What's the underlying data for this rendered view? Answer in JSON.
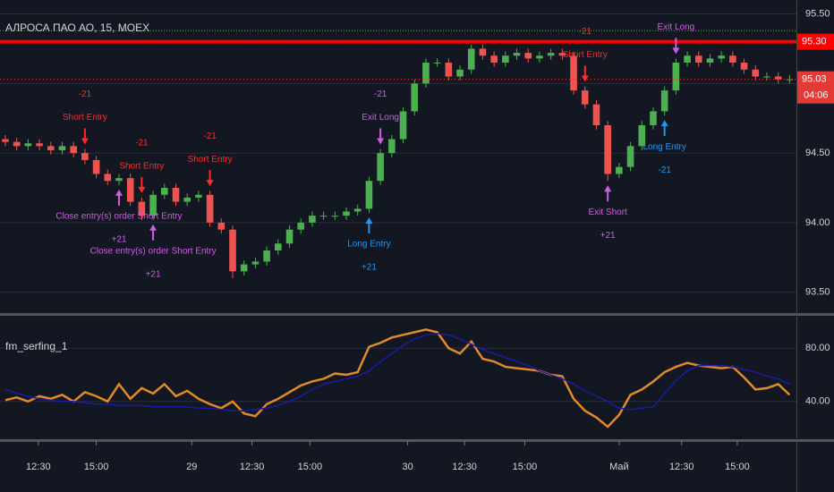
{
  "chart_data": [
    {
      "type": "candlestick",
      "title": "АЛРОСА ПАО АО, 15, MOEX",
      "xlim": [
        -0.47,
        69.6
      ],
      "ylim": [
        93.35,
        95.6
      ],
      "yticks": [
        {
          "value": 93.5,
          "label": "93.50"
        },
        {
          "value": 94.0,
          "label": "94.00"
        },
        {
          "value": 94.5,
          "label": "94.50"
        },
        {
          "value": 95.0,
          "label": "95.00"
        },
        {
          "value": 95.5,
          "label": "95.50"
        }
      ],
      "grid": true,
      "up_color": "#4caf50",
      "down_color": "#ef5350",
      "open": [
        94.6,
        94.58,
        94.55,
        94.57,
        94.55,
        94.52,
        94.55,
        94.5,
        94.45,
        94.35,
        94.3,
        94.32,
        94.15,
        94.05,
        94.2,
        94.25,
        94.15,
        94.18,
        94.2,
        94.0,
        93.95,
        93.65,
        93.7,
        93.72,
        93.8,
        93.85,
        93.95,
        94.0,
        94.05,
        94.05,
        94.05,
        94.08,
        94.1,
        94.3,
        94.5,
        94.6,
        94.8,
        95.0,
        95.15,
        95.15,
        95.05,
        95.1,
        95.25,
        95.2,
        95.15,
        95.2,
        95.22,
        95.18,
        95.2,
        95.22,
        95.2,
        94.95,
        94.85,
        94.7,
        94.35,
        94.4,
        94.55,
        94.7,
        94.8,
        94.95,
        95.15,
        95.2,
        95.15,
        95.18,
        95.2,
        95.15,
        95.1,
        95.05,
        95.05,
        95.03
      ],
      "high": [
        94.63,
        94.61,
        94.6,
        94.6,
        94.58,
        94.58,
        94.58,
        94.53,
        94.48,
        94.38,
        94.35,
        94.35,
        94.18,
        94.23,
        94.28,
        94.28,
        94.21,
        94.23,
        94.23,
        94.03,
        93.98,
        93.73,
        93.75,
        93.83,
        93.88,
        93.98,
        94.03,
        94.08,
        94.08,
        94.08,
        94.11,
        94.13,
        94.33,
        94.53,
        94.63,
        94.83,
        95.03,
        95.18,
        95.18,
        95.18,
        95.13,
        95.28,
        95.28,
        95.23,
        95.23,
        95.25,
        95.25,
        95.23,
        95.25,
        95.25,
        95.23,
        94.98,
        94.88,
        94.73,
        94.43,
        94.58,
        94.73,
        94.83,
        94.98,
        95.18,
        95.23,
        95.23,
        95.21,
        95.23,
        95.23,
        95.18,
        95.13,
        95.08,
        95.08,
        95.06
      ],
      "low": [
        94.55,
        94.52,
        94.52,
        94.52,
        94.49,
        94.49,
        94.47,
        94.42,
        94.32,
        94.27,
        94.27,
        94.12,
        94.02,
        94.02,
        94.17,
        94.12,
        94.12,
        94.15,
        93.97,
        93.92,
        93.6,
        93.62,
        93.67,
        93.69,
        93.77,
        93.82,
        93.92,
        93.97,
        94.02,
        94.02,
        94.02,
        94.05,
        94.07,
        94.27,
        94.47,
        94.57,
        94.77,
        94.97,
        95.12,
        95.02,
        95.02,
        95.07,
        95.17,
        95.12,
        95.12,
        95.17,
        95.15,
        95.15,
        95.17,
        95.17,
        94.92,
        94.82,
        94.67,
        94.3,
        94.32,
        94.37,
        94.52,
        94.67,
        94.77,
        94.92,
        95.12,
        95.12,
        95.12,
        95.15,
        95.12,
        95.07,
        95.02,
        95.02,
        95.0,
        95.0
      ],
      "close": [
        94.58,
        94.55,
        94.57,
        94.55,
        94.52,
        94.55,
        94.5,
        94.45,
        94.35,
        94.3,
        94.32,
        94.15,
        94.05,
        94.2,
        94.25,
        94.15,
        94.18,
        94.2,
        94.0,
        93.95,
        93.65,
        93.7,
        93.72,
        93.8,
        93.85,
        93.95,
        94.0,
        94.05,
        94.05,
        94.05,
        94.08,
        94.1,
        94.3,
        94.5,
        94.6,
        94.8,
        95.0,
        95.15,
        95.15,
        95.05,
        95.1,
        95.25,
        95.2,
        95.15,
        95.2,
        95.22,
        95.18,
        95.2,
        95.22,
        95.2,
        94.95,
        94.85,
        94.7,
        94.35,
        94.4,
        94.55,
        94.7,
        94.8,
        94.95,
        95.15,
        95.2,
        95.15,
        95.18,
        95.2,
        95.15,
        95.1,
        95.05,
        95.05,
        95.03,
        95.03
      ],
      "high_line": 95.38,
      "price_line": {
        "value": 95.3,
        "label": "95.30",
        "color": "#ff0000"
      },
      "last_price": {
        "value": 95.03,
        "label": "95.03",
        "color": "#e53935"
      },
      "countdown": "04:06",
      "annotations": [
        {
          "index": 7,
          "side": "above",
          "color": "#ff2a2a",
          "lines": [
            "-21",
            "Short Entry"
          ]
        },
        {
          "index": 12,
          "side": "above",
          "color": "#ff2a2a",
          "lines": [
            "-21",
            "Short Entry"
          ]
        },
        {
          "index": 18,
          "side": "above",
          "color": "#ff2a2a",
          "lines": [
            "-21",
            "Short Entry"
          ]
        },
        {
          "index": 10,
          "side": "below",
          "color": "#d05ce3",
          "lines": [
            "Close entry(s) order Short Entry",
            "+21"
          ]
        },
        {
          "index": 13,
          "side": "below",
          "color": "#d05ce3",
          "lines": [
            "Close entry(s) order Short Entry",
            "+21"
          ]
        },
        {
          "index": 33,
          "side": "above",
          "color": "#d05ce3",
          "lines": [
            "-21",
            "Exit Long"
          ]
        },
        {
          "index": 32,
          "side": "below",
          "color": "#2196f3",
          "lines": [
            "Long Entry",
            "+21"
          ]
        },
        {
          "index": 51,
          "side": "above",
          "color": "#ff2a2a",
          "lines": [
            "-21",
            "Short Entry"
          ]
        },
        {
          "index": 53,
          "side": "below",
          "color": "#d05ce3",
          "lines": [
            "Exit Short",
            "+21"
          ]
        },
        {
          "index": 58,
          "side": "below",
          "color": "#2196f3",
          "lines": [
            "Long Entry",
            "-21"
          ]
        },
        {
          "index": 59,
          "side": "above",
          "color": "#d05ce3",
          "lines": [
            "Exit Long"
          ]
        }
      ]
    },
    {
      "type": "line",
      "title": "fm_serfing_1",
      "xlim": [
        -0.47,
        69.6
      ],
      "ylim": [
        11,
        105
      ],
      "yticks": [
        {
          "value": 40,
          "label": "40.00"
        },
        {
          "value": 80,
          "label": "80.00"
        }
      ],
      "xticks": [
        {
          "value": 2.9,
          "label": "12:30"
        },
        {
          "value": 8,
          "label": "15:00"
        },
        {
          "value": 16.4,
          "label": "29"
        },
        {
          "value": 21.7,
          "label": "12:30"
        },
        {
          "value": 26.8,
          "label": "15:00"
        },
        {
          "value": 35.4,
          "label": "30"
        },
        {
          "value": 40.4,
          "label": "12:30"
        },
        {
          "value": 45.7,
          "label": "15:00"
        },
        {
          "value": 54,
          "label": "Май"
        },
        {
          "value": 59.5,
          "label": "12:30"
        },
        {
          "value": 64.4,
          "label": "15:00"
        }
      ],
      "grid": true,
      "series": [
        {
          "color": "#e08a2a",
          "values": [
            41,
            43,
            40,
            44,
            42,
            45,
            40,
            47,
            44,
            40,
            53,
            42,
            50,
            46,
            53,
            44,
            48,
            42,
            38,
            35,
            40,
            31,
            29,
            38,
            42,
            47,
            52,
            55,
            57,
            61,
            60,
            62,
            81,
            84,
            88,
            90,
            92,
            94,
            92,
            80,
            76,
            85,
            72,
            70,
            66,
            65,
            64,
            63,
            60,
            59,
            42,
            33,
            28,
            21,
            30,
            45,
            49,
            55,
            62,
            66,
            69,
            67,
            66,
            65,
            66,
            58,
            49,
            50,
            53,
            45
          ]
        },
        {
          "color": "#1a1aa6",
          "values": [
            49,
            46,
            44,
            42,
            41,
            40,
            40,
            39,
            38,
            38,
            37,
            37,
            37,
            36,
            36,
            36,
            36,
            35,
            35,
            34,
            33,
            33,
            34,
            35,
            37,
            40,
            44,
            49,
            53,
            55,
            57,
            59,
            63,
            70,
            76,
            82,
            87,
            90,
            91,
            90,
            87,
            83,
            79,
            76,
            73,
            70,
            67,
            63,
            60,
            57,
            53,
            48,
            44,
            40,
            35,
            34,
            35,
            36,
            46,
            56,
            63,
            67,
            67,
            67,
            66,
            64,
            62,
            59,
            57,
            53
          ]
        }
      ]
    }
  ]
}
